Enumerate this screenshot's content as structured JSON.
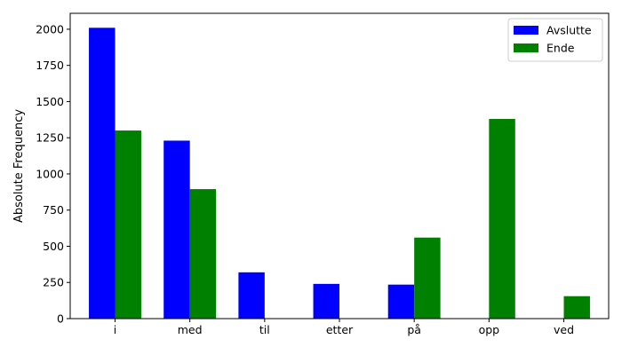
{
  "chart_data": {
    "type": "bar",
    "title": "",
    "xlabel": "",
    "ylabel": "Absolute Frequency",
    "categories": [
      "i",
      "med",
      "til",
      "etter",
      "på",
      "opp",
      "ved"
    ],
    "series": [
      {
        "name": "Avslutte",
        "color": "#0000ff",
        "values": [
          2010,
          1230,
          320,
          240,
          235,
          0,
          0
        ]
      },
      {
        "name": "Ende",
        "color": "#008000",
        "values": [
          1300,
          895,
          0,
          0,
          560,
          1380,
          155
        ]
      }
    ],
    "ylim": [
      0,
      2110
    ],
    "yticks": [
      0,
      250,
      500,
      750,
      1000,
      1250,
      1500,
      1750,
      2000
    ],
    "grid": false,
    "legend_position": "top-right"
  }
}
